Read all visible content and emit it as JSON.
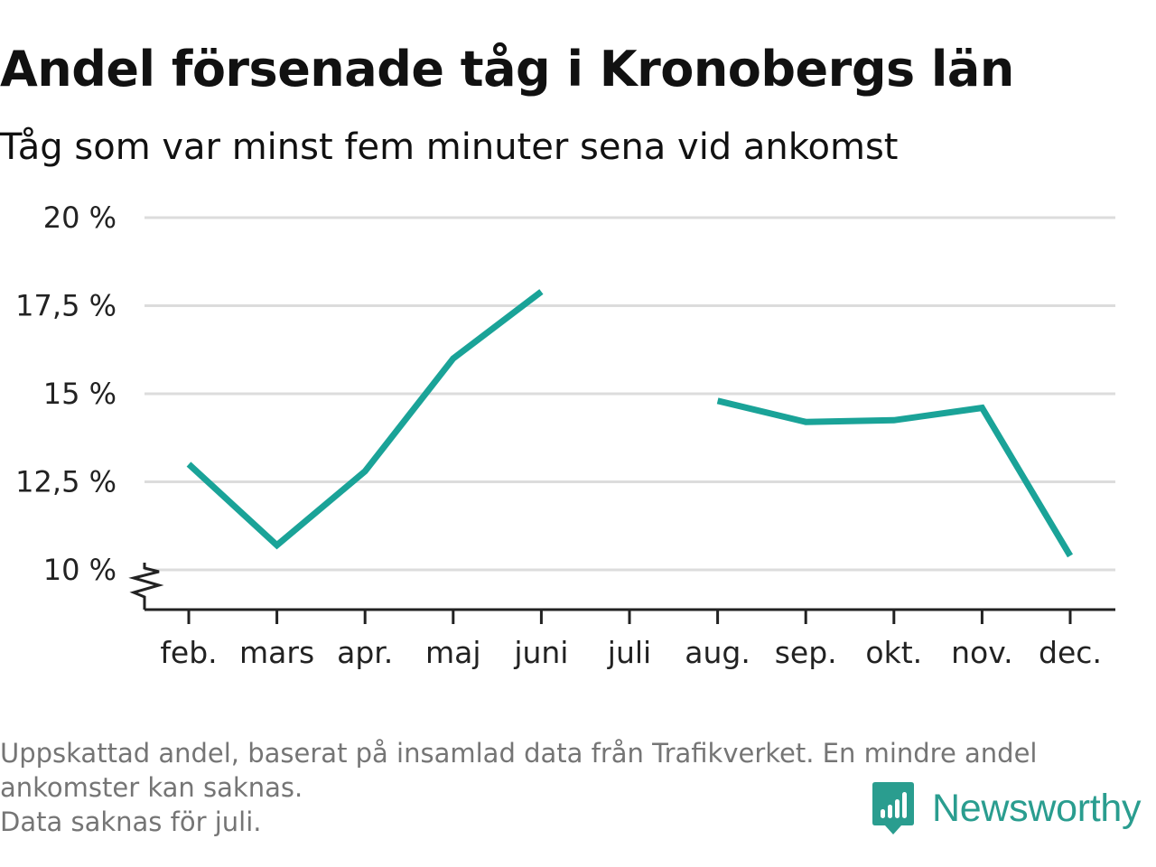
{
  "chart_data": {
    "type": "line",
    "title": "Andel försenade tåg i Kronobergs län",
    "subtitle": "Tåg som var minst fem minuter sena vid ankomst",
    "categories": [
      "feb.",
      "mars",
      "apr.",
      "maj",
      "juni",
      "juli",
      "aug.",
      "sep.",
      "okt.",
      "nov.",
      "dec."
    ],
    "series": [
      {
        "values": [
          13.0,
          10.7,
          12.8,
          16.0,
          17.9,
          null,
          14.8,
          14.2,
          14.25,
          14.6,
          10.4
        ]
      }
    ],
    "yticks": [
      10,
      12.5,
      15,
      17.5,
      20
    ],
    "ytick_labels": [
      "10 %",
      "12,5 %",
      "15 %",
      "17,5 %",
      "20 %"
    ],
    "ylim": [
      10,
      20
    ],
    "y_axis_break": true,
    "grid": true,
    "line_color": "#1aa398",
    "grid_color": "#dcdcdc"
  },
  "footnote": {
    "lines": [
      "Uppskattad andel, baserat på insamlad data från Trafikverket. En mindre andel",
      "ankomster kan saknas.",
      "Data saknas för juli."
    ]
  },
  "brand": {
    "name": "Newsworthy",
    "icon": "newsworthy-logo-icon",
    "color": "#2a9d8f"
  }
}
